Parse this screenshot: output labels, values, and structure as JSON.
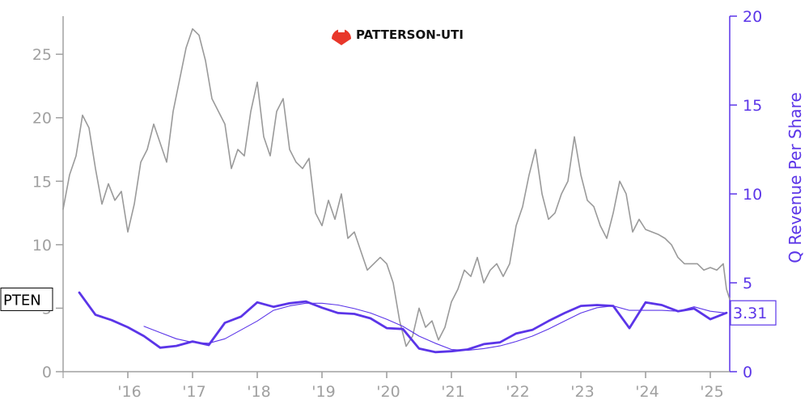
{
  "logo": {
    "text": "PATTERSON-UTI",
    "color": "#e8372a"
  },
  "ticker": "PTEN",
  "chart_data": {
    "type": "line",
    "x_tick_labels": [
      "'16",
      "'17",
      "'18",
      "'19",
      "'20",
      "'21",
      "'22",
      "'23",
      "'24",
      "'25"
    ],
    "left_axis": {
      "ticks": [
        0,
        5,
        10,
        15,
        20,
        25
      ],
      "range": [
        0,
        28
      ],
      "color": "#a0a0a0"
    },
    "right_axis": {
      "label": "Q Revenue Per Share",
      "ticks": [
        0,
        5,
        10,
        15,
        20
      ],
      "range": [
        0,
        20
      ],
      "color": "#5b35e8"
    },
    "series": [
      {
        "axis": "left",
        "color": "#9a9a9a",
        "points": [
          [
            2015.0,
            12.8
          ],
          [
            2015.1,
            15.5
          ],
          [
            2015.2,
            17.0
          ],
          [
            2015.3,
            20.2
          ],
          [
            2015.4,
            19.2
          ],
          [
            2015.5,
            16.0
          ],
          [
            2015.6,
            13.2
          ],
          [
            2015.7,
            14.8
          ],
          [
            2015.8,
            13.5
          ],
          [
            2015.9,
            14.2
          ],
          [
            2016.0,
            11.0
          ],
          [
            2016.1,
            13.2
          ],
          [
            2016.2,
            16.5
          ],
          [
            2016.3,
            17.5
          ],
          [
            2016.4,
            19.5
          ],
          [
            2016.5,
            18.0
          ],
          [
            2016.6,
            16.5
          ],
          [
            2016.7,
            20.5
          ],
          [
            2016.8,
            23.0
          ],
          [
            2016.9,
            25.5
          ],
          [
            2017.0,
            27.0
          ],
          [
            2017.1,
            26.5
          ],
          [
            2017.2,
            24.5
          ],
          [
            2017.3,
            21.5
          ],
          [
            2017.4,
            20.5
          ],
          [
            2017.5,
            19.5
          ],
          [
            2017.6,
            16.0
          ],
          [
            2017.7,
            17.5
          ],
          [
            2017.8,
            17.0
          ],
          [
            2017.9,
            20.5
          ],
          [
            2018.0,
            22.8
          ],
          [
            2018.1,
            18.5
          ],
          [
            2018.2,
            17.0
          ],
          [
            2018.3,
            20.5
          ],
          [
            2018.4,
            21.5
          ],
          [
            2018.5,
            17.5
          ],
          [
            2018.6,
            16.5
          ],
          [
            2018.7,
            16.0
          ],
          [
            2018.8,
            16.8
          ],
          [
            2018.9,
            12.5
          ],
          [
            2019.0,
            11.5
          ],
          [
            2019.1,
            13.5
          ],
          [
            2019.2,
            12.0
          ],
          [
            2019.3,
            14.0
          ],
          [
            2019.4,
            10.5
          ],
          [
            2019.5,
            11.0
          ],
          [
            2019.6,
            9.5
          ],
          [
            2019.7,
            8.0
          ],
          [
            2019.8,
            8.5
          ],
          [
            2019.9,
            9.0
          ],
          [
            2020.0,
            8.5
          ],
          [
            2020.1,
            7.0
          ],
          [
            2020.2,
            4.0
          ],
          [
            2020.3,
            2.0
          ],
          [
            2020.4,
            2.8
          ],
          [
            2020.5,
            5.0
          ],
          [
            2020.6,
            3.5
          ],
          [
            2020.7,
            4.0
          ],
          [
            2020.8,
            2.5
          ],
          [
            2020.9,
            3.5
          ],
          [
            2021.0,
            5.5
          ],
          [
            2021.1,
            6.5
          ],
          [
            2021.2,
            8.0
          ],
          [
            2021.3,
            7.5
          ],
          [
            2021.4,
            9.0
          ],
          [
            2021.5,
            7.0
          ],
          [
            2021.6,
            8.0
          ],
          [
            2021.7,
            8.5
          ],
          [
            2021.8,
            7.5
          ],
          [
            2021.9,
            8.5
          ],
          [
            2022.0,
            11.5
          ],
          [
            2022.1,
            13.0
          ],
          [
            2022.2,
            15.5
          ],
          [
            2022.3,
            17.5
          ],
          [
            2022.4,
            14.0
          ],
          [
            2022.5,
            12.0
          ],
          [
            2022.6,
            12.5
          ],
          [
            2022.7,
            14.0
          ],
          [
            2022.8,
            15.0
          ],
          [
            2022.9,
            18.5
          ],
          [
            2023.0,
            15.5
          ],
          [
            2023.1,
            13.5
          ],
          [
            2023.2,
            13.0
          ],
          [
            2023.3,
            11.5
          ],
          [
            2023.4,
            10.5
          ],
          [
            2023.5,
            12.5
          ],
          [
            2023.6,
            15.0
          ],
          [
            2023.7,
            14.0
          ],
          [
            2023.8,
            11.0
          ],
          [
            2023.9,
            12.0
          ],
          [
            2024.0,
            11.2
          ],
          [
            2024.1,
            11.0
          ],
          [
            2024.2,
            10.8
          ],
          [
            2024.3,
            10.5
          ],
          [
            2024.4,
            10.0
          ],
          [
            2024.5,
            9.0
          ],
          [
            2024.6,
            8.5
          ],
          [
            2024.7,
            8.5
          ],
          [
            2024.8,
            8.5
          ],
          [
            2024.9,
            8.0
          ],
          [
            2025.0,
            8.2
          ],
          [
            2025.1,
            8.0
          ],
          [
            2025.2,
            8.5
          ],
          [
            2025.25,
            6.5
          ],
          [
            2025.3,
            5.7
          ]
        ]
      },
      {
        "axis": "right",
        "color": "#5b35e8",
        "points": [
          [
            2015.25,
            4.45
          ],
          [
            2015.5,
            3.2
          ],
          [
            2015.75,
            2.9
          ],
          [
            2016.0,
            2.5
          ],
          [
            2016.25,
            2.0
          ],
          [
            2016.5,
            1.35
          ],
          [
            2016.75,
            1.45
          ],
          [
            2017.0,
            1.7
          ],
          [
            2017.25,
            1.5
          ],
          [
            2017.5,
            2.75
          ],
          [
            2017.75,
            3.1
          ],
          [
            2018.0,
            3.9
          ],
          [
            2018.25,
            3.65
          ],
          [
            2018.5,
            3.85
          ],
          [
            2018.75,
            3.95
          ],
          [
            2019.0,
            3.6
          ],
          [
            2019.25,
            3.3
          ],
          [
            2019.5,
            3.25
          ],
          [
            2019.75,
            3.0
          ],
          [
            2020.0,
            2.45
          ],
          [
            2020.25,
            2.4
          ],
          [
            2020.5,
            1.3
          ],
          [
            2020.75,
            1.1
          ],
          [
            2021.0,
            1.15
          ],
          [
            2021.25,
            1.25
          ],
          [
            2021.5,
            1.55
          ],
          [
            2021.75,
            1.65
          ],
          [
            2022.0,
            2.15
          ],
          [
            2022.25,
            2.35
          ],
          [
            2022.5,
            2.85
          ],
          [
            2022.75,
            3.3
          ],
          [
            2023.0,
            3.7
          ],
          [
            2023.25,
            3.75
          ],
          [
            2023.5,
            3.7
          ],
          [
            2023.75,
            2.45
          ],
          [
            2024.0,
            3.9
          ],
          [
            2024.25,
            3.75
          ],
          [
            2024.5,
            3.4
          ],
          [
            2024.75,
            3.55
          ],
          [
            2025.0,
            2.95
          ],
          [
            2025.25,
            3.31
          ]
        ]
      },
      {
        "axis": "right",
        "color": "#5b35e8",
        "points": [
          [
            2016.25,
            2.55
          ],
          [
            2016.5,
            2.2
          ],
          [
            2016.75,
            1.85
          ],
          [
            2017.0,
            1.65
          ],
          [
            2017.25,
            1.6
          ],
          [
            2017.5,
            1.85
          ],
          [
            2017.75,
            2.35
          ],
          [
            2018.0,
            2.85
          ],
          [
            2018.25,
            3.45
          ],
          [
            2018.5,
            3.7
          ],
          [
            2018.75,
            3.85
          ],
          [
            2019.0,
            3.85
          ],
          [
            2019.25,
            3.75
          ],
          [
            2019.5,
            3.55
          ],
          [
            2019.75,
            3.3
          ],
          [
            2020.0,
            2.95
          ],
          [
            2020.25,
            2.55
          ],
          [
            2020.5,
            2.0
          ],
          [
            2020.75,
            1.6
          ],
          [
            2021.0,
            1.25
          ],
          [
            2021.25,
            1.2
          ],
          [
            2021.5,
            1.3
          ],
          [
            2021.75,
            1.45
          ],
          [
            2022.0,
            1.7
          ],
          [
            2022.25,
            2.0
          ],
          [
            2022.5,
            2.4
          ],
          [
            2022.75,
            2.85
          ],
          [
            2023.0,
            3.3
          ],
          [
            2023.25,
            3.6
          ],
          [
            2023.5,
            3.7
          ],
          [
            2023.75,
            3.45
          ],
          [
            2024.0,
            3.45
          ],
          [
            2024.25,
            3.45
          ],
          [
            2024.5,
            3.4
          ],
          [
            2024.75,
            3.65
          ],
          [
            2025.0,
            3.4
          ],
          [
            2025.25,
            3.3
          ]
        ]
      }
    ],
    "last_value_label": "3.31"
  }
}
